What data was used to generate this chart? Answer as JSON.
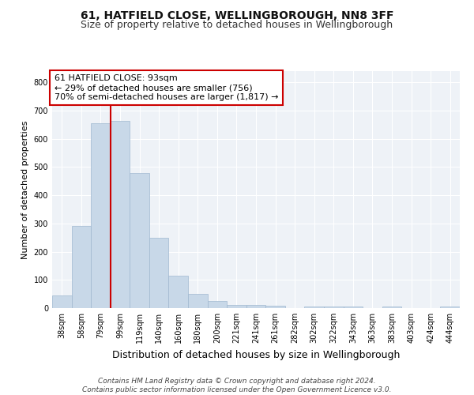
{
  "title": "61, HATFIELD CLOSE, WELLINGBOROUGH, NN8 3FF",
  "subtitle": "Size of property relative to detached houses in Wellingborough",
  "xlabel": "Distribution of detached houses by size in Wellingborough",
  "ylabel": "Number of detached properties",
  "categories": [
    "38sqm",
    "58sqm",
    "79sqm",
    "99sqm",
    "119sqm",
    "140sqm",
    "160sqm",
    "180sqm",
    "200sqm",
    "221sqm",
    "241sqm",
    "261sqm",
    "282sqm",
    "302sqm",
    "322sqm",
    "343sqm",
    "363sqm",
    "383sqm",
    "403sqm",
    "424sqm",
    "444sqm"
  ],
  "values": [
    45,
    290,
    655,
    665,
    480,
    250,
    115,
    50,
    25,
    12,
    12,
    8,
    0,
    7,
    7,
    5,
    0,
    5,
    0,
    0,
    5
  ],
  "bar_color": "#c8d8e8",
  "bar_edgecolor": "#a0b8d0",
  "vline_x": 2.5,
  "vline_color": "#cc0000",
  "ylim": [
    0,
    840
  ],
  "yticks": [
    0,
    100,
    200,
    300,
    400,
    500,
    600,
    700,
    800
  ],
  "annotation_text": "61 HATFIELD CLOSE: 93sqm\n← 29% of detached houses are smaller (756)\n70% of semi-detached houses are larger (1,817) →",
  "footer_line1": "Contains HM Land Registry data © Crown copyright and database right 2024.",
  "footer_line2": "Contains public sector information licensed under the Open Government Licence v3.0.",
  "background_color": "#eef2f7",
  "grid_color": "#ffffff",
  "title_fontsize": 10,
  "subtitle_fontsize": 9,
  "ylabel_fontsize": 8,
  "xlabel_fontsize": 9,
  "tick_fontsize": 7,
  "annotation_fontsize": 8,
  "footer_fontsize": 6.5
}
